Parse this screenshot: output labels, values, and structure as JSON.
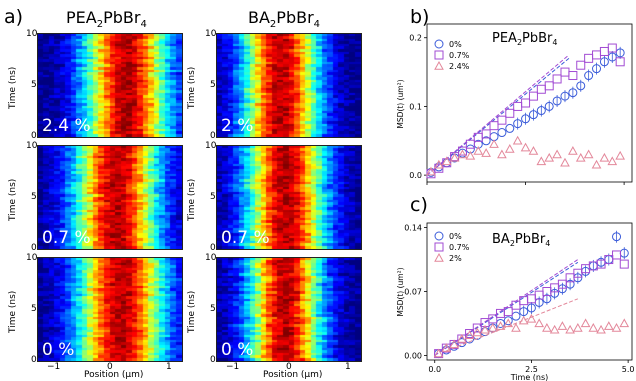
{
  "panel_labels": {
    "a": "a)",
    "b": "b)",
    "c": "c)"
  },
  "heatmaps": {
    "column_titles": {
      "left_base": "PEA",
      "left_sub1": "2",
      "left_mid": "PbBr",
      "left_sub2": "4",
      "right_base": "BA",
      "right_sub1": "2",
      "right_mid": "PbBr",
      "right_sub2": "4"
    },
    "ylabel": "Time (ns)",
    "xlabel": "Position (μm)",
    "yticks": [
      "10",
      "5",
      "0"
    ],
    "xticks": [
      "−1",
      "0",
      "1"
    ],
    "labels": {
      "r1c1": "2.4 %",
      "r1c2": "2 %",
      "r2c1": "0.7 %",
      "r2c2": "0.7 %",
      "r3c1": "0 %",
      "r3c2": "0 %"
    },
    "colormap": "jet"
  },
  "chart_data": [
    {
      "type": "scatter",
      "title": "PEA2PbBr4",
      "title_parts": {
        "base": "PEA",
        "sub1": "2",
        "mid": "PbBr",
        "sub2": "4"
      },
      "ylabel": "MSD(t) (um²)",
      "xlim": [
        0,
        5.2
      ],
      "ylim": [
        -0.01,
        0.22
      ],
      "yticks": [
        "0.0",
        "0.1",
        "0.2"
      ],
      "legend_position": "top-left",
      "series": [
        {
          "name": "0%",
          "marker": "circle",
          "color": "#3a5bd9",
          "x": [
            0.1,
            0.3,
            0.5,
            0.7,
            0.9,
            1.1,
            1.3,
            1.5,
            1.7,
            1.9,
            2.1,
            2.3,
            2.5,
            2.7,
            2.9,
            3.1,
            3.3,
            3.5,
            3.7,
            3.9,
            4.1,
            4.3,
            4.5,
            4.7,
            4.9
          ],
          "y": [
            0.004,
            0.012,
            0.018,
            0.025,
            0.032,
            0.038,
            0.045,
            0.05,
            0.056,
            0.062,
            0.068,
            0.075,
            0.082,
            0.088,
            0.094,
            0.1,
            0.108,
            0.115,
            0.12,
            0.13,
            0.145,
            0.155,
            0.165,
            0.172,
            0.178
          ],
          "fit_x": [
            0,
            3.6
          ],
          "fit_y": [
            0.0,
            0.17
          ]
        },
        {
          "name": "0.7%",
          "marker": "square",
          "color": "#a24bd3",
          "x": [
            0.1,
            0.3,
            0.5,
            0.7,
            0.9,
            1.1,
            1.3,
            1.5,
            1.7,
            1.9,
            2.1,
            2.3,
            2.5,
            2.7,
            2.9,
            3.1,
            3.3,
            3.5,
            3.7,
            3.9,
            4.1,
            4.3,
            4.5,
            4.7,
            4.9
          ],
          "y": [
            0.002,
            0.01,
            0.018,
            0.027,
            0.035,
            0.045,
            0.055,
            0.06,
            0.072,
            0.08,
            0.09,
            0.1,
            0.105,
            0.115,
            0.125,
            0.13,
            0.14,
            0.15,
            0.145,
            0.16,
            0.17,
            0.175,
            0.18,
            0.185,
            0.165
          ],
          "fit_x": [
            0,
            3.6
          ],
          "fit_y": [
            0.0,
            0.175
          ]
        },
        {
          "name": "2.4%",
          "marker": "triangle",
          "color": "#e3879a",
          "x": [
            0.1,
            0.3,
            0.5,
            0.7,
            0.9,
            1.1,
            1.3,
            1.5,
            1.7,
            1.9,
            2.1,
            2.3,
            2.5,
            2.7,
            2.9,
            3.1,
            3.3,
            3.5,
            3.7,
            3.9,
            4.1,
            4.3,
            4.5,
            4.7,
            4.9
          ],
          "y": [
            0.005,
            0.015,
            0.02,
            0.025,
            0.03,
            0.028,
            0.035,
            0.032,
            0.045,
            0.03,
            0.038,
            0.05,
            0.04,
            0.035,
            0.02,
            0.025,
            0.03,
            0.018,
            0.035,
            0.025,
            0.03,
            0.015,
            0.025,
            0.02,
            0.028
          ]
        }
      ]
    },
    {
      "type": "scatter",
      "title": "BA2PbBr4",
      "title_parts": {
        "base": "BA",
        "sub1": "2",
        "mid": "PbBr",
        "sub2": "4"
      },
      "ylabel": "MSD(t) (um²)",
      "xlabel": "Time (ns)",
      "xlim": [
        -0.2,
        5.1
      ],
      "ylim": [
        -0.005,
        0.145
      ],
      "xticks": [
        "0.0",
        "2.5",
        "5.0"
      ],
      "yticks": [
        "0.00",
        "0.07",
        "0.14"
      ],
      "legend_position": "top-left",
      "series": [
        {
          "name": "0%",
          "marker": "circle",
          "color": "#3a5bd9",
          "x": [
            0.1,
            0.3,
            0.5,
            0.7,
            0.9,
            1.1,
            1.3,
            1.5,
            1.7,
            1.9,
            2.1,
            2.3,
            2.5,
            2.7,
            2.9,
            3.1,
            3.3,
            3.5,
            3.7,
            3.9,
            4.1,
            4.3,
            4.5,
            4.7,
            4.9
          ],
          "y": [
            0.002,
            0.006,
            0.01,
            0.014,
            0.018,
            0.022,
            0.026,
            0.03,
            0.035,
            0.038,
            0.043,
            0.048,
            0.052,
            0.058,
            0.062,
            0.068,
            0.073,
            0.078,
            0.085,
            0.092,
            0.098,
            0.102,
            0.105,
            0.13,
            0.112
          ],
          "fit_x": [
            0,
            3.7
          ],
          "fit_y": [
            0.0,
            0.102
          ]
        },
        {
          "name": "0.7%",
          "marker": "square",
          "color": "#a24bd3",
          "x": [
            0.1,
            0.3,
            0.5,
            0.7,
            0.9,
            1.1,
            1.3,
            1.5,
            1.7,
            1.9,
            2.1,
            2.3,
            2.5,
            2.7,
            2.9,
            3.1,
            3.3,
            3.5,
            3.7,
            3.9,
            4.1,
            4.3,
            4.5,
            4.7,
            4.9
          ],
          "y": [
            0.002,
            0.008,
            0.012,
            0.018,
            0.024,
            0.03,
            0.036,
            0.04,
            0.046,
            0.048,
            0.055,
            0.06,
            0.062,
            0.066,
            0.07,
            0.074,
            0.078,
            0.085,
            0.09,
            0.095,
            0.098,
            0.1,
            0.105,
            0.11,
            0.1
          ],
          "fit_x": [
            0,
            3.7
          ],
          "fit_y": [
            0.0,
            0.105
          ]
        },
        {
          "name": "2%",
          "marker": "triangle",
          "color": "#e3879a",
          "x": [
            0.1,
            0.3,
            0.5,
            0.7,
            0.9,
            1.1,
            1.3,
            1.5,
            1.7,
            1.9,
            2.1,
            2.3,
            2.5,
            2.7,
            2.9,
            3.1,
            3.3,
            3.5,
            3.7,
            3.9,
            4.1,
            4.3,
            4.5,
            4.7,
            4.9
          ],
          "y": [
            0.002,
            0.008,
            0.012,
            0.018,
            0.022,
            0.025,
            0.028,
            0.03,
            0.032,
            0.035,
            0.03,
            0.038,
            0.04,
            0.035,
            0.03,
            0.028,
            0.032,
            0.028,
            0.03,
            0.035,
            0.03,
            0.028,
            0.032,
            0.03,
            0.035
          ],
          "fit_x": [
            0.3,
            3.7
          ],
          "fit_y": [
            0.005,
            0.062
          ]
        }
      ]
    }
  ]
}
